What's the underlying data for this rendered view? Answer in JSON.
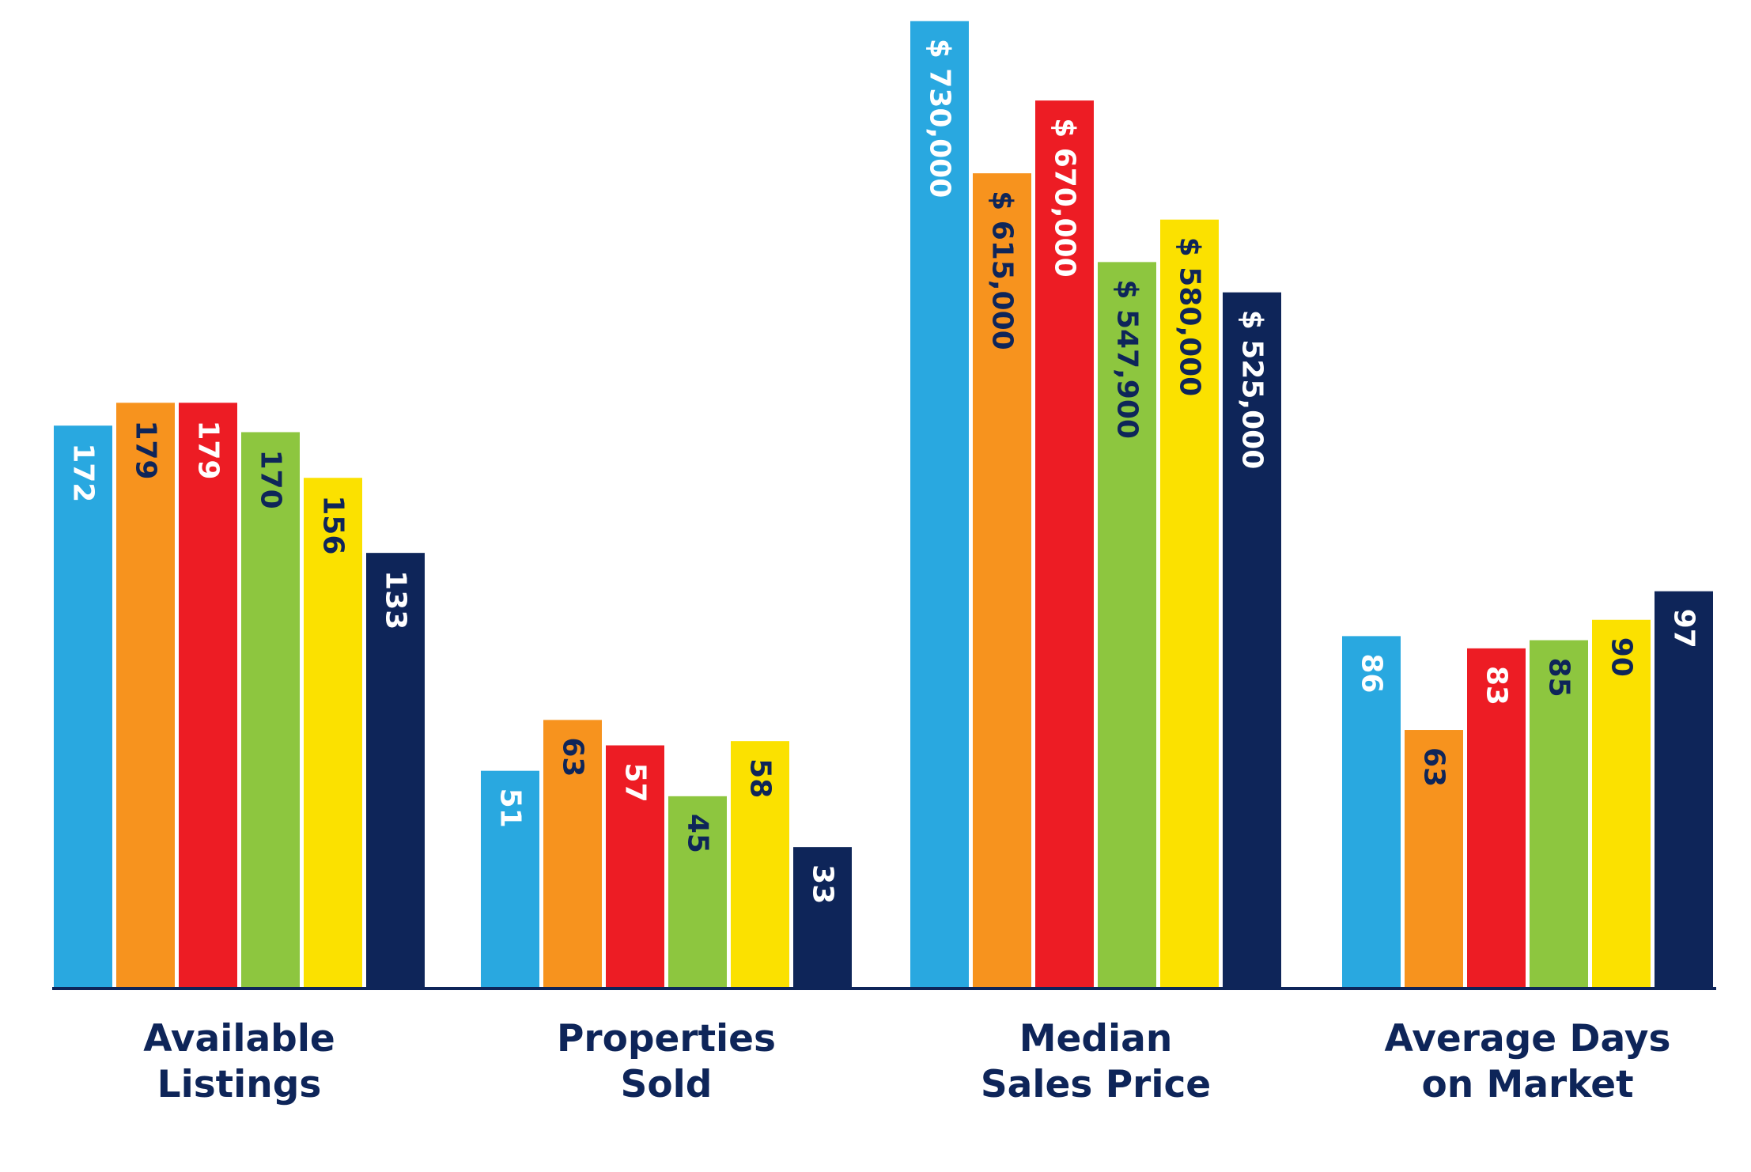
{
  "chart_data": {
    "type": "bar",
    "title": "",
    "xlabel": "",
    "ylabel": "",
    "grid": false,
    "legend": "none",
    "series_colors": [
      "#29a8e0",
      "#f7931e",
      "#ed1c24",
      "#8dc63f",
      "#fbe100",
      "#0e2559"
    ],
    "label_colors": [
      "#ffffff",
      "#0e2559",
      "#ffffff",
      "#0e2559",
      "#0e2559",
      "#ffffff"
    ],
    "groups": [
      {
        "label_lines": [
          "Available",
          "Listings"
        ],
        "values": [
          172,
          179,
          179,
          170,
          156,
          133
        ],
        "labels": [
          "172",
          "179",
          "179",
          "170",
          "156",
          "133"
        ],
        "ylim": [
          0,
          300
        ]
      },
      {
        "label_lines": [
          "Properties",
          "Sold"
        ],
        "values": [
          51,
          63,
          57,
          45,
          58,
          33
        ],
        "labels": [
          "51",
          "63",
          "57",
          "45",
          "58",
          "33"
        ],
        "ylim": [
          0,
          231
        ]
      },
      {
        "label_lines": [
          "Median",
          "Sales Price"
        ],
        "values": [
          730000,
          615000,
          670000,
          547900,
          580000,
          525000
        ],
        "labels": [
          "$ 730,000",
          "$ 615,000",
          "$ 670,000",
          "$ 547,900",
          "$ 580,000",
          "$ 525,000"
        ],
        "ylim": [
          0,
          740000
        ]
      },
      {
        "label_lines": [
          "Average Days",
          "on Market"
        ],
        "values": [
          86,
          63,
          83,
          85,
          90,
          97
        ],
        "labels": [
          "86",
          "63",
          "83",
          "85",
          "90",
          "97"
        ],
        "ylim": [
          0,
          240
        ]
      }
    ]
  }
}
